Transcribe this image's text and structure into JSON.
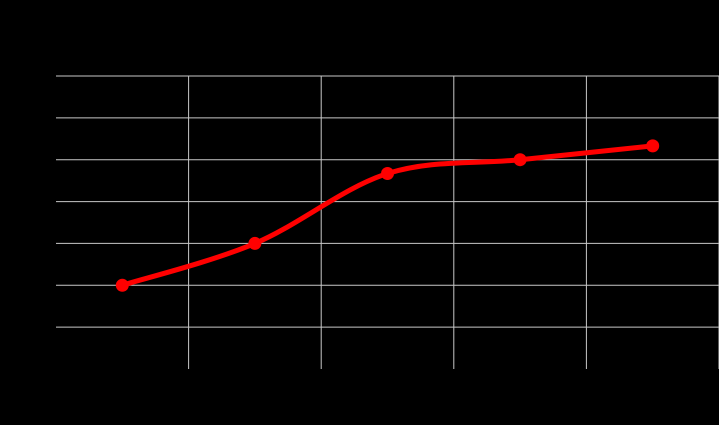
{
  "colors": {
    "background": "#000000",
    "gridline": "#c8c8c8",
    "series": "#ff0000"
  },
  "chart_data": {
    "type": "line",
    "title": "",
    "xlabel": "",
    "ylabel": "",
    "x": [
      1,
      2,
      3,
      4,
      5
    ],
    "xlim": [
      0.5,
      5.5
    ],
    "ylim": [
      0,
      7
    ],
    "grid": true,
    "smooth": true,
    "markers": true,
    "series": [
      {
        "values": [
          2.0,
          3.0,
          4.67,
          5.0,
          5.33
        ]
      }
    ]
  }
}
